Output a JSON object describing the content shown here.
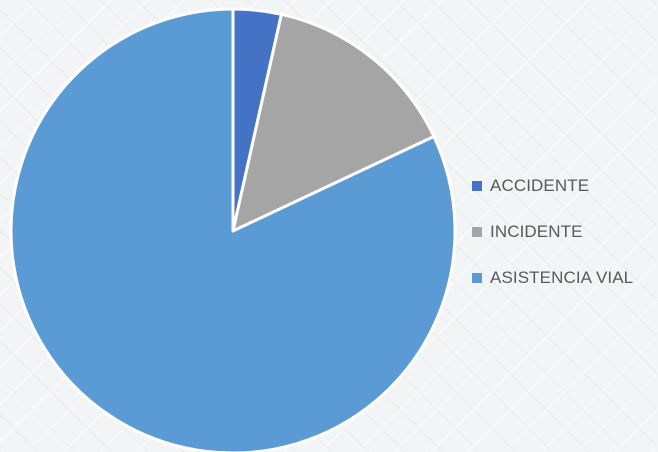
{
  "chart_data": {
    "type": "pie",
    "categories": [
      "ACCIDENTE",
      "INCIDENTE",
      "ASISTENCIA VIAL"
    ],
    "values": [
      3.5,
      14.5,
      82.0
    ],
    "colors": [
      "#4472c4",
      "#a5a5a5",
      "#5b9bd5"
    ],
    "legend_position": "right",
    "title": ""
  }
}
